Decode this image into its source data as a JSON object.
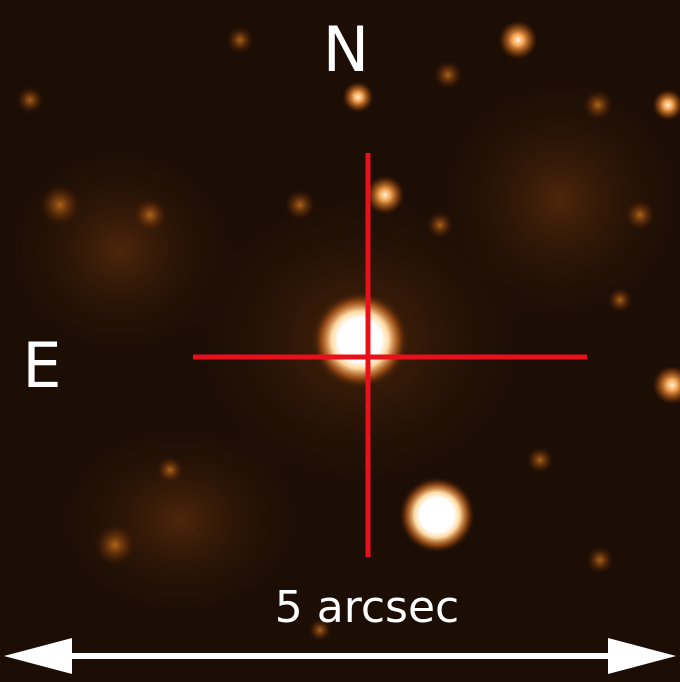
{
  "labels": {
    "north": "N",
    "east": "E",
    "scale": "5 arcsec"
  }
}
